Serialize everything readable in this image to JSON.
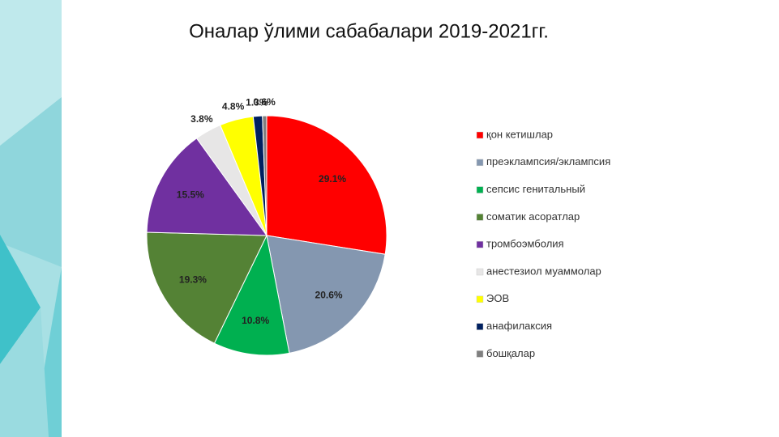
{
  "chart_data": {
    "type": "pie",
    "title": "Оналар ўлими сабабалари 2019-2021гг.",
    "categories": [
      "қон кетишлар",
      "преэклампсия/эклампсия",
      "сепсис генитальный",
      "соматик асоратлар",
      "тромбоэмболия",
      "анестезиол муаммолар",
      "ЭОВ",
      "анафилаксия",
      "бошқалар"
    ],
    "values": [
      29.1,
      20.6,
      10.8,
      19.3,
      15.5,
      3.8,
      4.8,
      1.3,
      0.6
    ],
    "value_labels": [
      "29.1%",
      "20.6%",
      "10.8%",
      "19.3%",
      "15.5%",
      "3.8%",
      "4.8%",
      "1.3%",
      "0.6%"
    ],
    "colors": [
      "#ff0000",
      "#8497b0",
      "#00b050",
      "#548235",
      "#7030a0",
      "#e7e6e6",
      "#ffff00",
      "#002060",
      "#7f7f7f"
    ],
    "legend": "right"
  }
}
